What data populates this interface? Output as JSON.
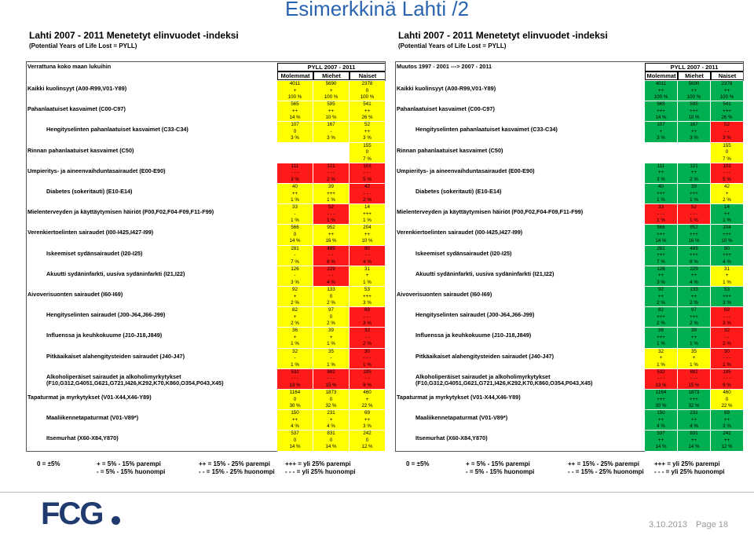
{
  "title": "Esimerkkinä Lahti /2",
  "colors": {
    "y": "#ffff00",
    "r": "#ff1a1a",
    "g": "#00b050"
  },
  "panels": [
    {
      "title": "Lahti 2007 - 2011 Menetetyt elinvuodet -indeksi",
      "subtitle": "(Potential Years of Life Lost = PYLL)",
      "corner": "Verrattuna koko maan lukuihin",
      "group": "PYLL 2007 - 2011",
      "columns": [
        "Molemmat",
        "Miehet",
        "Naiset"
      ],
      "rows": [
        {
          "label": "Kaikki kuolinsyyt (A00-R99,V01-Y89)",
          "cells": [
            [
              4011,
              "+",
              "100 %",
              "y"
            ],
            [
              5690,
              "+",
              "100 %",
              "y"
            ],
            [
              2378,
              "0",
              "100 %",
              "y"
            ]
          ]
        },
        {
          "label": "Pahanlaatuiset kasvaimet (C00-C97)",
          "cells": [
            [
              565,
              "++",
              "14 %",
              "y"
            ],
            [
              595,
              "++",
              "10 %",
              "y"
            ],
            [
              541,
              "++",
              "26 %",
              "y"
            ]
          ]
        },
        {
          "label": "Hengityselinten pahanlaatuiset kasvaimet (C33-C34)",
          "cells": [
            [
              107,
              "0",
              "3 %",
              "y"
            ],
            [
              167,
              "-",
              "3 %",
              "y"
            ],
            [
              52,
              "++",
              "3 %",
              "y"
            ]
          ]
        },
        {
          "label": "Rinnan pahanlaatuiset kasvaimet (C50)",
          "cells": [
            null,
            null,
            [
              155,
              "0",
              "7 %",
              "y"
            ]
          ]
        },
        {
          "label": "Umpieritys- ja aineenvaihduntasairaudet (E00-E90)",
          "cells": [
            [
              111,
              "- - -",
              "3 %",
              "r"
            ],
            [
              121,
              "- - -",
              "2 %",
              "r"
            ],
            [
              103,
              "- - -",
              "5 %",
              "r"
            ]
          ]
        },
        {
          "label": "Diabetes (sokeritauti) (E10-E14)",
          "cells": [
            [
              40,
              "++",
              "1 %",
              "y"
            ],
            [
              39,
              "+++",
              "1 %",
              "y"
            ],
            [
              42,
              "- - -",
              "2 %",
              "r"
            ]
          ]
        },
        {
          "label": "Mielenterveyden ja käyttäytymisen häiriöt (F00,F02,F04-F09,F11-F99)",
          "cells": [
            [
              33,
              "-",
              "1 %",
              "y"
            ],
            [
              52,
              "- - -",
              "1 %",
              "r"
            ],
            [
              14,
              "+++",
              "1 %",
              "y"
            ]
          ]
        },
        {
          "label": "Verenkiertoelinten sairaudet (I00-I425,I427-I99)",
          "cells": [
            [
              566,
              "0",
              "14 %",
              "y"
            ],
            [
              952,
              "++",
              "16 %",
              "y"
            ],
            [
              204,
              "++",
              "10 %",
              "y"
            ]
          ]
        },
        {
          "label": "Iskeemiset sydänsairaudet (I20-I25)",
          "cells": [
            [
              281,
              "-",
              "7 %",
              "y"
            ],
            [
              489,
              "- -",
              "8 %",
              "r"
            ],
            [
              90,
              "- -",
              "4 %",
              "r"
            ]
          ]
        },
        {
          "label": "Akuutti sydäninfarkti, uusiva sydäninfarkti (I21,I22)",
          "cells": [
            [
              126,
              "-",
              "3 %",
              "y"
            ],
            [
              229,
              "- -",
              "4 %",
              "r"
            ],
            [
              31,
              "+",
              "1 %",
              "y"
            ]
          ]
        },
        {
          "label": "Aivoverisuonten sairaudet (I60-I69)",
          "cells": [
            [
              92,
              "+",
              "2 %",
              "y"
            ],
            [
              133,
              "0",
              "2 %",
              "y"
            ],
            [
              53,
              "+++",
              "3 %",
              "y"
            ]
          ]
        },
        {
          "label": "Hengityselinten sairaudet (J00-J64,J66-J99)",
          "cells": [
            [
              82,
              "+",
              "2 %",
              "y"
            ],
            [
              97,
              "0",
              "2 %",
              "y"
            ],
            [
              69,
              "- - -",
              "3 %",
              "r"
            ]
          ]
        },
        {
          "label": "Influenssa ja keuhkokuume (J10-J18,J849)",
          "cells": [
            [
              36,
              "+",
              "1 %",
              "y"
            ],
            [
              39,
              "+",
              "1 %",
              "y"
            ],
            [
              32,
              "- -",
              "2 %",
              "r"
            ]
          ]
        },
        {
          "label": "Pitkäaikaiset alahengitysteiden sairaudet (J40-J47)",
          "cells": [
            [
              32,
              "-",
              "1 %",
              "y"
            ],
            [
              35,
              "-",
              "1 %",
              "y"
            ],
            [
              30,
              "- - -",
              "1 %",
              "r"
            ]
          ]
        },
        {
          "label": "Alkoholiperäiset sairaudet ja alkoholimyrkytykset (F10,G312,G4051,G621,G721,I426,K292,K70,K860,O354,P043,X45)",
          "cells": [
            [
              532,
              "- - -",
              "13 %",
              "r"
            ],
            [
              882,
              "- - -",
              "15 %",
              "r"
            ],
            [
              195,
              "- -",
              "9 %",
              "r"
            ]
          ]
        },
        {
          "label": "Tapaturmat ja myrkytykset (V01-X44,X46-Y89)",
          "cells": [
            [
              1164,
              "0",
              "30 %",
              "y"
            ],
            [
              1873,
              "0",
              "32 %",
              "y"
            ],
            [
              460,
              "+",
              "22 %",
              "y"
            ]
          ]
        },
        {
          "label": "Maaliikennetapaturmat (V01-V89*)",
          "cells": [
            [
              150,
              "++",
              "4 %",
              "y"
            ],
            [
              231,
              "+",
              "4 %",
              "y"
            ],
            [
              69,
              "++",
              "3 %",
              "y"
            ]
          ]
        },
        {
          "label": "Itsemurhat (X60-X84,Y870)",
          "cells": [
            [
              537,
              "0",
              "14 %",
              "y"
            ],
            [
              831,
              "0",
              "14 %",
              "y"
            ],
            [
              242,
              "0",
              "12 %",
              "y"
            ]
          ]
        }
      ]
    },
    {
      "title": "Lahti 2007 - 2011 Menetetyt elinvuodet -indeksi",
      "subtitle": "(Potential Years of Life Lost = PYLL)",
      "corner": "Muutos 1997 - 2001 ---> 2007 - 2011",
      "group": "PYLL 2007 - 2011",
      "columns": [
        "Molemmat",
        "Miehet",
        "Naiset"
      ],
      "rows": [
        {
          "label": "Kaikki kuolinsyyt (A00-R99,V01-Y89)",
          "cells": [
            [
              4011,
              "++",
              "100 %",
              "g"
            ],
            [
              5690,
              "++",
              "100 %",
              "g"
            ],
            [
              2378,
              "++",
              "100 %",
              "g"
            ]
          ]
        },
        {
          "label": "Pahanlaatuiset kasvaimet (C00-C97)",
          "cells": [
            [
              565,
              "+++",
              "14 %",
              "g"
            ],
            [
              595,
              "+++",
              "10 %",
              "g"
            ],
            [
              541,
              "+++",
              "26 %",
              "g"
            ]
          ]
        },
        {
          "label": "Hengityselinten pahanlaatuiset kasvaimet (C33-C34)",
          "cells": [
            [
              107,
              "+",
              "3 %",
              "g"
            ],
            [
              167,
              "++",
              "3 %",
              "g"
            ],
            [
              52,
              "- -",
              "3 %",
              "r"
            ]
          ]
        },
        {
          "label": "Rinnan pahanlaatuiset kasvaimet (C50)",
          "cells": [
            null,
            null,
            [
              155,
              "0",
              "7 %",
              "y"
            ]
          ]
        },
        {
          "label": "Umpieritys- ja aineenvaihduntasairaudet (E00-E90)",
          "cells": [
            [
              111,
              "++",
              "3 %",
              "g"
            ],
            [
              121,
              "++",
              "2 %",
              "g"
            ],
            [
              103,
              "- - -",
              "5 %",
              "r"
            ]
          ]
        },
        {
          "label": "Diabetes (sokeritauti) (E10-E14)",
          "cells": [
            [
              40,
              "+++",
              "1 %",
              "g"
            ],
            [
              39,
              "+++",
              "1 %",
              "g"
            ],
            [
              42,
              "+",
              "2 %",
              "y"
            ]
          ]
        },
        {
          "label": "Mielenterveyden ja käyttäytymisen häiriöt (F00,F02,F04-F09,F11-F99)",
          "cells": [
            [
              33,
              "- - -",
              "1 %",
              "r"
            ],
            [
              52,
              "- - -",
              "1 %",
              "r"
            ],
            [
              14,
              "++",
              "1 %",
              "g"
            ]
          ]
        },
        {
          "label": "Verenkiertoelinten sairaudet (I00-I425,I427-I99)",
          "cells": [
            [
              566,
              "+++",
              "14 %",
              "g"
            ],
            [
              952,
              "+++",
              "16 %",
              "g"
            ],
            [
              204,
              "+++",
              "10 %",
              "g"
            ]
          ]
        },
        {
          "label": "Iskeemiset sydänsairaudet (I20-I25)",
          "cells": [
            [
              281,
              "+++",
              "7 %",
              "g"
            ],
            [
              489,
              "+++",
              "8 %",
              "g"
            ],
            [
              90,
              "+++",
              "4 %",
              "g"
            ]
          ]
        },
        {
          "label": "Akuutti sydäninfarkti, uusiva sydäninfarkti (I21,I22)",
          "cells": [
            [
              126,
              "++",
              "3 %",
              "g"
            ],
            [
              229,
              "++",
              "4 %",
              "g"
            ],
            [
              31,
              "+",
              "1 %",
              "y"
            ]
          ]
        },
        {
          "label": "Aivoverisuonten sairaudet (I60-I69)",
          "cells": [
            [
              92,
              "++",
              "2 %",
              "g"
            ],
            [
              133,
              "++",
              "2 %",
              "g"
            ],
            [
              53,
              "+++",
              "3 %",
              "g"
            ]
          ]
        },
        {
          "label": "Hengityselinten sairaudet (J00-J64,J66-J99)",
          "cells": [
            [
              82,
              "+++",
              "2 %",
              "g"
            ],
            [
              97,
              "+++",
              "2 %",
              "g"
            ],
            [
              69,
              "- - -",
              "3 %",
              "r"
            ]
          ]
        },
        {
          "label": "Influenssa ja keuhkokuume (J10-J18,J849)",
          "cells": [
            [
              36,
              "+++",
              "1 %",
              "g"
            ],
            [
              39,
              "++",
              "1 %",
              "g"
            ],
            [
              32,
              "- -",
              "2 %",
              "r"
            ]
          ]
        },
        {
          "label": "Pitkäaikaiset alahengitysteiden sairaudet (J40-J47)",
          "cells": [
            [
              32,
              "+",
              "1 %",
              "y"
            ],
            [
              35,
              "+",
              "1 %",
              "y"
            ],
            [
              30,
              "- - -",
              "1 %",
              "r"
            ]
          ]
        },
        {
          "label": "Alkoholiperäiset sairaudet ja alkoholimyrkytykset (F10,G312,G4051,G621,G721,I426,K292,K70,K860,O354,P043,X45)",
          "cells": [
            [
              532,
              "- - -",
              "13 %",
              "r"
            ],
            [
              882,
              "- - -",
              "15 %",
              "r"
            ],
            [
              195,
              "- - -",
              "9 %",
              "r"
            ]
          ]
        },
        {
          "label": "Tapaturmat ja myrkytykset (V01-X44,X46-Y89)",
          "cells": [
            [
              1164,
              "+++",
              "30 %",
              "g"
            ],
            [
              1873,
              "+++",
              "32 %",
              "g"
            ],
            [
              460,
              "0",
              "22 %",
              "y"
            ]
          ]
        },
        {
          "label": "Maaliikennetapaturmat (V01-V89*)",
          "cells": [
            [
              150,
              "++",
              "4 %",
              "g"
            ],
            [
              231,
              "++",
              "4 %",
              "g"
            ],
            [
              69,
              "++",
              "3 %",
              "g"
            ]
          ]
        },
        {
          "label": "Itsemurhat (X60-X84,Y870)",
          "cells": [
            [
              537,
              "++",
              "14 %",
              "g"
            ],
            [
              831,
              "++",
              "14 %",
              "g"
            ],
            [
              242,
              "++",
              "12 %",
              "g"
            ]
          ]
        }
      ]
    }
  ],
  "legend": [
    "0 = ±5%",
    "+ = 5% - 15% parempi",
    "- = 5% - 15% huonompi",
    "++ = 15% - 25% parempi",
    "- - = 15% - 25% huonompi",
    "+++ = yli 25% parempi",
    "- - - = yli 25% huonompi"
  ],
  "footer": {
    "logo": "FCG",
    "date": "3.10.2013",
    "page": "Page 18"
  }
}
